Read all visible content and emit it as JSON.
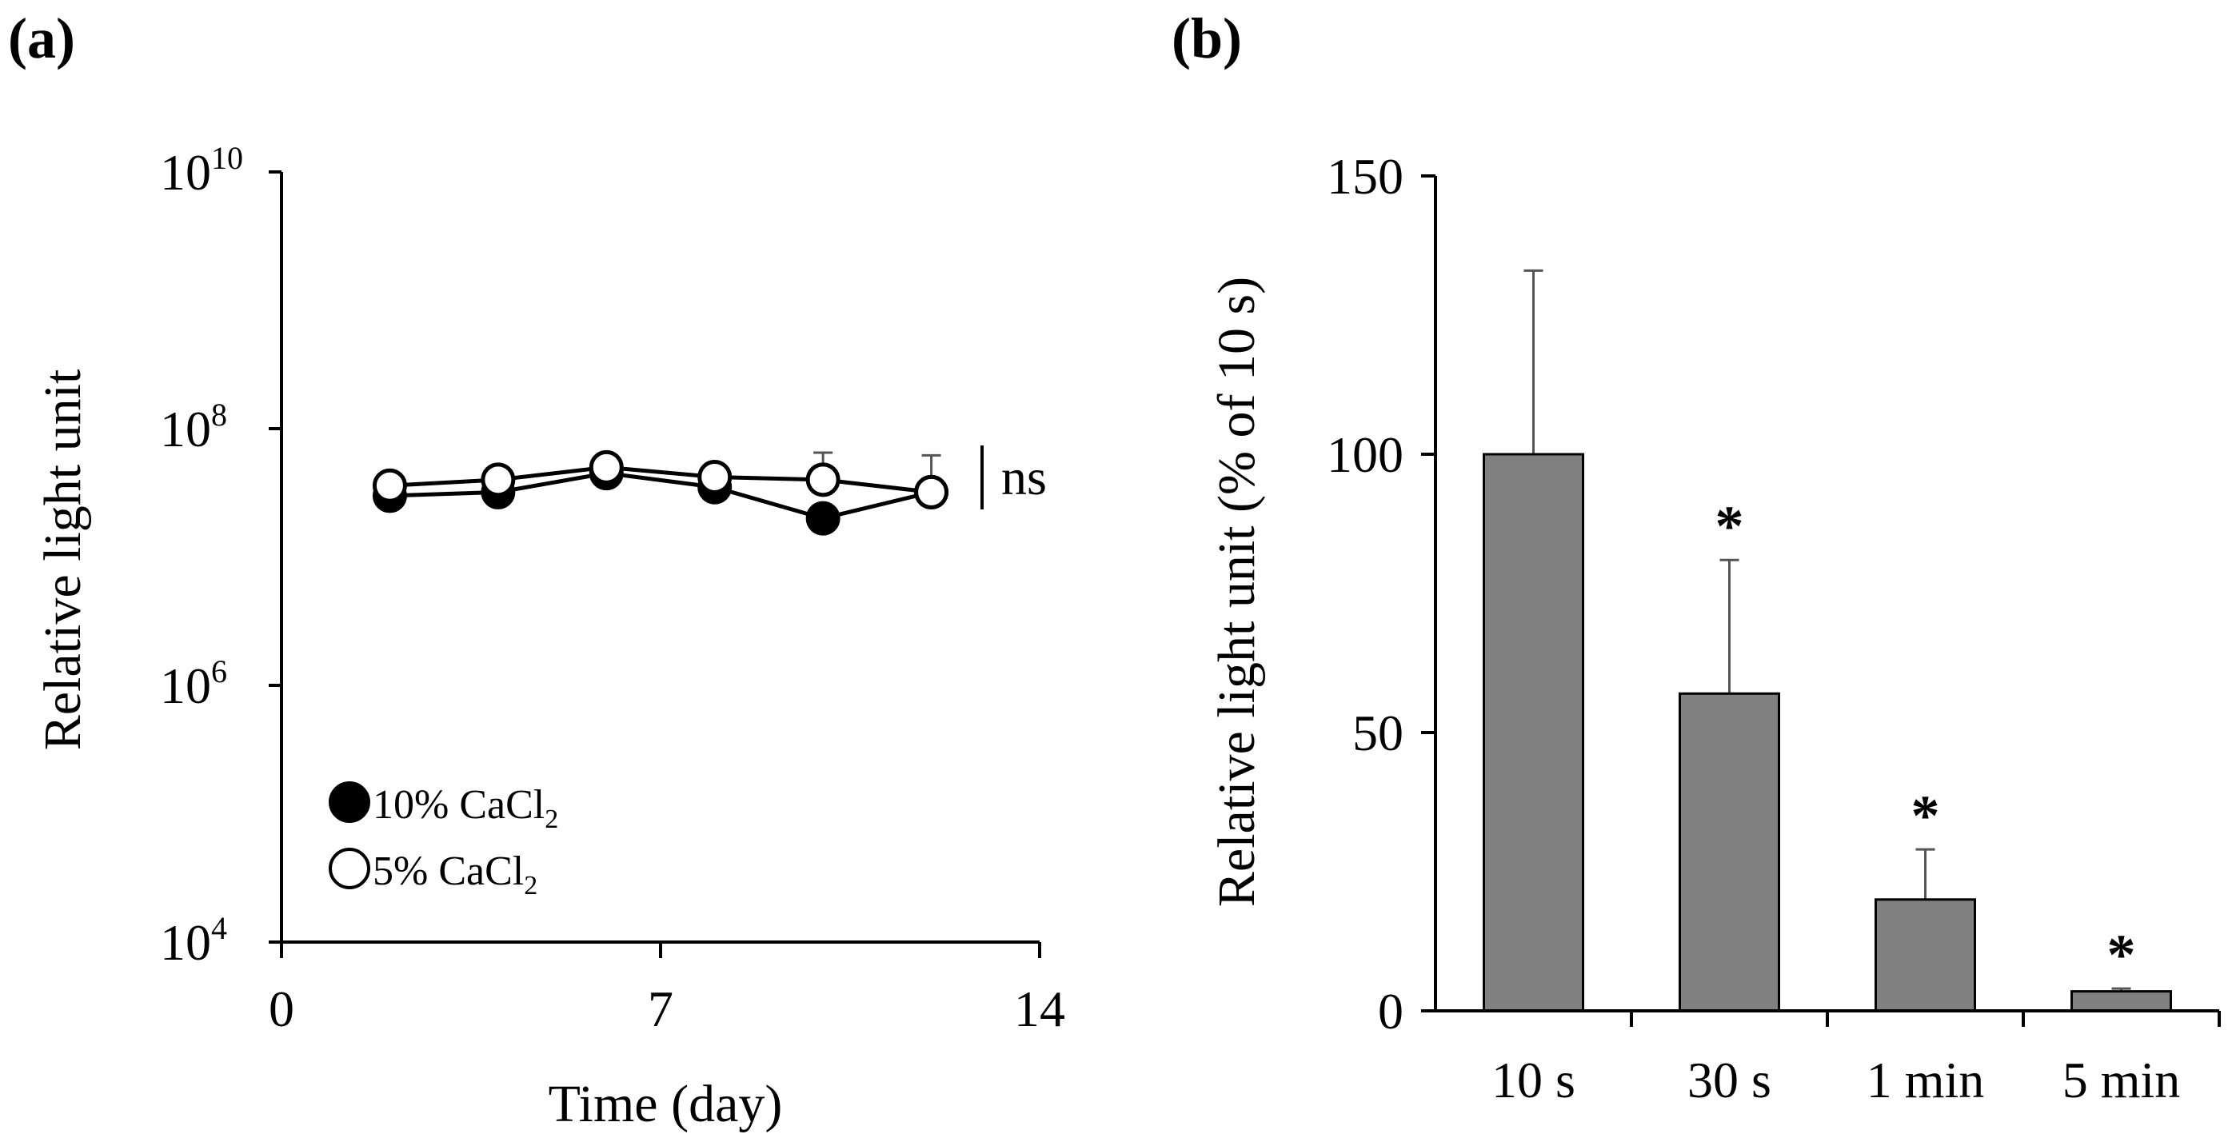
{
  "chart_data": [
    {
      "type": "line",
      "panel_label": "(a)",
      "xlabel": "Time (day)",
      "ylabel": "Relative light unit",
      "xlim": [
        0,
        14
      ],
      "ylim_log10": [
        4,
        10
      ],
      "yscale": "log",
      "x_ticks": [
        {
          "value": 0,
          "label": "0"
        },
        {
          "value": 7,
          "label": "7"
        },
        {
          "value": 14,
          "label": "14"
        }
      ],
      "y_ticks": [
        {
          "exp": 10,
          "base": "10",
          "sup": "10"
        },
        {
          "exp": 8,
          "base": "10",
          "sup": "8"
        },
        {
          "exp": 6,
          "base": "10",
          "sup": "6"
        },
        {
          "exp": 4,
          "base": "10",
          "sup": "4"
        }
      ],
      "series": [
        {
          "name": "10% CaCl2",
          "legend_main": "10% CaCl",
          "legend_sub": "2",
          "marker": "filled-circle",
          "x": [
            2,
            4,
            6,
            8,
            10,
            12
          ],
          "y": [
            30000000,
            32000000,
            45000000,
            35000000,
            20000000,
            32000000
          ],
          "y_err": [
            0,
            0,
            0,
            0,
            0,
            0
          ]
        },
        {
          "name": "5% CaCl2",
          "legend_main": "5% CaCl",
          "legend_sub": "2",
          "marker": "open-circle",
          "x": [
            2,
            4,
            6,
            8,
            10,
            12
          ],
          "y": [
            36000000,
            40000000,
            50000000,
            42000000,
            40000000,
            32000000
          ],
          "y_err": [
            0,
            0,
            0,
            0,
            25000000,
            30000000
          ]
        }
      ],
      "annotation": "ns",
      "legend_position": "bottom-left"
    },
    {
      "type": "bar",
      "panel_label": "(b)",
      "xlabel": "",
      "ylabel": "Relative light unit (% of 10 s)",
      "categories": [
        "10 s",
        "30 s",
        "1 min",
        "5 min"
      ],
      "values": [
        100,
        57,
        20,
        3.5
      ],
      "errors": [
        33,
        24,
        9,
        0.5
      ],
      "significance": [
        "",
        "*",
        "*",
        "*"
      ],
      "ylim": [
        0,
        150
      ],
      "y_ticks": [
        {
          "value": 0,
          "label": "0"
        },
        {
          "value": 50,
          "label": "50"
        },
        {
          "value": 100,
          "label": "100"
        },
        {
          "value": 150,
          "label": "150"
        }
      ],
      "bar_color": "#808080"
    }
  ]
}
